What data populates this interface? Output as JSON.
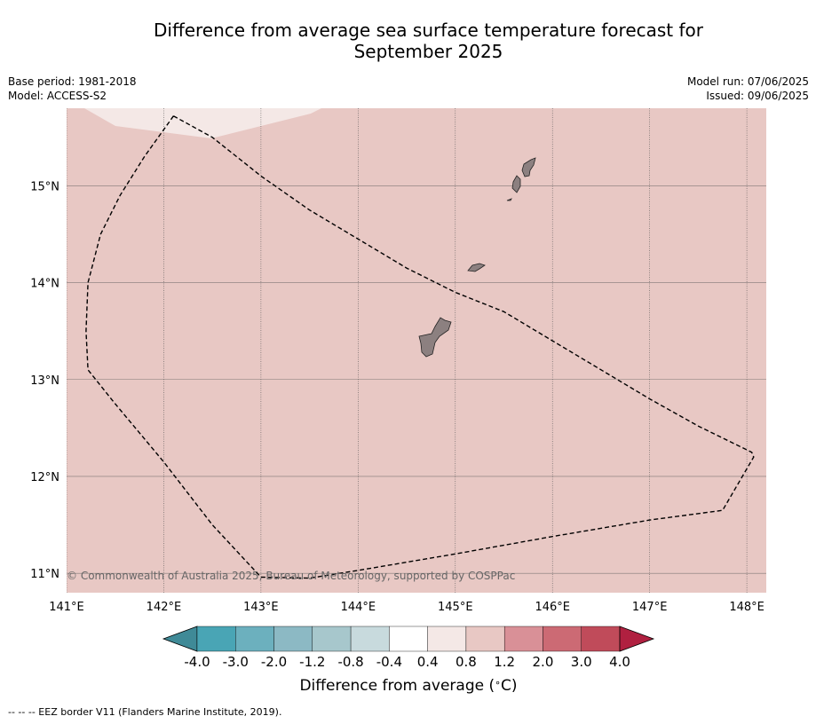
{
  "title_line1": "Difference from average sea surface temperature forecast for",
  "title_line2": "September 2025",
  "meta": {
    "base_period": "Base period: 1981-2018",
    "model": "Model: ACCESS-S2",
    "model_run": "Model run: 07/06/2025",
    "issued": "Issued: 09/06/2025"
  },
  "map": {
    "lon_ticks": [
      "141°E",
      "142°E",
      "143°E",
      "144°E",
      "145°E",
      "146°E",
      "147°E",
      "148°E"
    ],
    "lat_ticks": [
      "15°N",
      "14°N",
      "13°N",
      "12°N",
      "11°N"
    ],
    "lon_range": [
      141.0,
      148.2
    ],
    "lat_range": [
      10.8,
      15.8
    ],
    "background_category": "0.8 to 1.2",
    "copyright": "© Commonwealth of Australia 2025, Bureau of Meteorology, supported by COSPPac",
    "colors": {
      "fill_main": "#e8c8c4",
      "fill_low": "#f4e8e6",
      "land": "#8c8080",
      "grid": "#555555"
    },
    "eez_border": [
      [
        142.1,
        15.72
      ],
      [
        142.5,
        15.5
      ],
      [
        143.0,
        15.1
      ],
      [
        143.5,
        14.75
      ],
      [
        144.0,
        14.45
      ],
      [
        144.5,
        14.15
      ],
      [
        145.0,
        13.9
      ],
      [
        145.5,
        13.7
      ],
      [
        146.0,
        13.4
      ],
      [
        146.5,
        13.1
      ],
      [
        147.0,
        12.8
      ],
      [
        147.5,
        12.52
      ],
      [
        148.05,
        12.25
      ],
      [
        148.07,
        12.2
      ],
      [
        147.75,
        11.65
      ],
      [
        147.0,
        11.55
      ],
      [
        146.0,
        11.38
      ],
      [
        145.0,
        11.2
      ],
      [
        144.0,
        11.03
      ],
      [
        143.5,
        10.95
      ],
      [
        143.0,
        10.96
      ],
      [
        142.5,
        11.5
      ],
      [
        142.0,
        12.15
      ],
      [
        141.5,
        12.75
      ],
      [
        141.22,
        13.1
      ],
      [
        141.2,
        13.5
      ],
      [
        141.22,
        14.0
      ],
      [
        141.35,
        14.5
      ],
      [
        141.55,
        14.9
      ],
      [
        141.8,
        15.3
      ],
      [
        142.1,
        15.72
      ]
    ]
  },
  "colorbar": {
    "label": "Difference from average (",
    "label_unit": "C)",
    "label_degree": "∘",
    "tick_labels": [
      "-4.0",
      "-3.0",
      "-2.0",
      "-1.2",
      "-0.8",
      "-0.4",
      "0.4",
      "0.8",
      "1.2",
      "2.0",
      "3.0",
      "4.0"
    ],
    "colors": [
      "#3f8a97",
      "#49a5b5",
      "#6cb0be",
      "#8cb9c4",
      "#a7c7cc",
      "#c8dadd",
      "#ffffff",
      "#f4e8e6",
      "#e8c8c4",
      "#d99097",
      "#cc6a74",
      "#c04b5a",
      "#b02040"
    ]
  },
  "footnote": "--  --  -- EEZ border V11 (Flanders Marine Institute, 2019)."
}
